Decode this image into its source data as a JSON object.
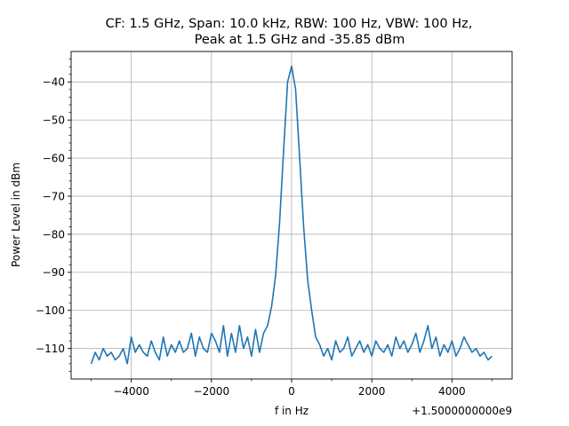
{
  "chart_data": {
    "type": "line",
    "title_lines": [
      "CF: 1.5 GHz, Span: 10.0 kHz, RBW: 100 Hz, VBW: 100 Hz,",
      "Peak at 1.5 GHz and -35.85 dBm"
    ],
    "xlabel": "f in Hz",
    "ylabel": "Power Level in dBm",
    "x_offset_label": "+1.5000000000e9",
    "xlim": [
      -5500,
      5500
    ],
    "ylim": [
      -118,
      -32
    ],
    "xticks": [
      -4000,
      -2000,
      0,
      2000,
      4000
    ],
    "xtick_labels": [
      "−4000",
      "−2000",
      "0",
      "2000",
      "4000"
    ],
    "yticks": [
      -110,
      -100,
      -90,
      -80,
      -70,
      -60,
      -50,
      -40
    ],
    "ytick_labels": [
      "−110",
      "−100",
      "−90",
      "−80",
      "−70",
      "−60",
      "−50",
      "−40"
    ],
    "grid": true,
    "line_color": "#1f77b4",
    "series": [
      {
        "x": [
          -5000,
          -4900,
          -4800,
          -4700,
          -4600,
          -4500,
          -4400,
          -4300,
          -4200,
          -4100,
          -4000,
          -3900,
          -3800,
          -3700,
          -3600,
          -3500,
          -3400,
          -3300,
          -3200,
          -3100,
          -3000,
          -2900,
          -2800,
          -2700,
          -2600,
          -2500,
          -2400,
          -2300,
          -2200,
          -2100,
          -2000,
          -1900,
          -1800,
          -1700,
          -1600,
          -1500,
          -1400,
          -1300,
          -1200,
          -1100,
          -1000,
          -900,
          -800,
          -700,
          -600,
          -500,
          -400,
          -300,
          -200,
          -100,
          0,
          100,
          200,
          300,
          400,
          500,
          600,
          700,
          800,
          900,
          1000,
          1100,
          1200,
          1300,
          1400,
          1500,
          1600,
          1700,
          1800,
          1900,
          2000,
          2100,
          2200,
          2300,
          2400,
          2500,
          2600,
          2700,
          2800,
          2900,
          3000,
          3100,
          3200,
          3300,
          3400,
          3500,
          3600,
          3700,
          3800,
          3900,
          4000,
          4100,
          4200,
          4300,
          4400,
          4500,
          4600,
          4700,
          4800,
          4900,
          5000
        ],
        "y": [
          -114,
          -111,
          -113,
          -110,
          -112,
          -111,
          -113,
          -112,
          -110,
          -114,
          -107,
          -111,
          -109,
          -111,
          -112,
          -108,
          -111,
          -113,
          -107,
          -112,
          -109,
          -111,
          -108,
          -111,
          -110,
          -106,
          -112,
          -107,
          -110,
          -111,
          -106,
          -108,
          -111,
          -104,
          -112,
          -106,
          -111,
          -104,
          -110,
          -107,
          -112,
          -105,
          -111,
          -106,
          -104,
          -99,
          -91,
          -77,
          -58,
          -40,
          -35.85,
          -42,
          -60,
          -78,
          -92,
          -100,
          -107,
          -109,
          -112,
          -110,
          -113,
          -108,
          -111,
          -110,
          -107,
          -112,
          -110,
          -108,
          -111,
          -109,
          -112,
          -108,
          -110,
          -111,
          -109,
          -112,
          -107,
          -110,
          -108,
          -111,
          -109,
          -106,
          -111,
          -108,
          -104,
          -110,
          -107,
          -112,
          -109,
          -111,
          -108,
          -112,
          -110,
          -107,
          -109,
          -111,
          -110,
          -112,
          -111,
          -113,
          -112
        ]
      }
    ]
  }
}
